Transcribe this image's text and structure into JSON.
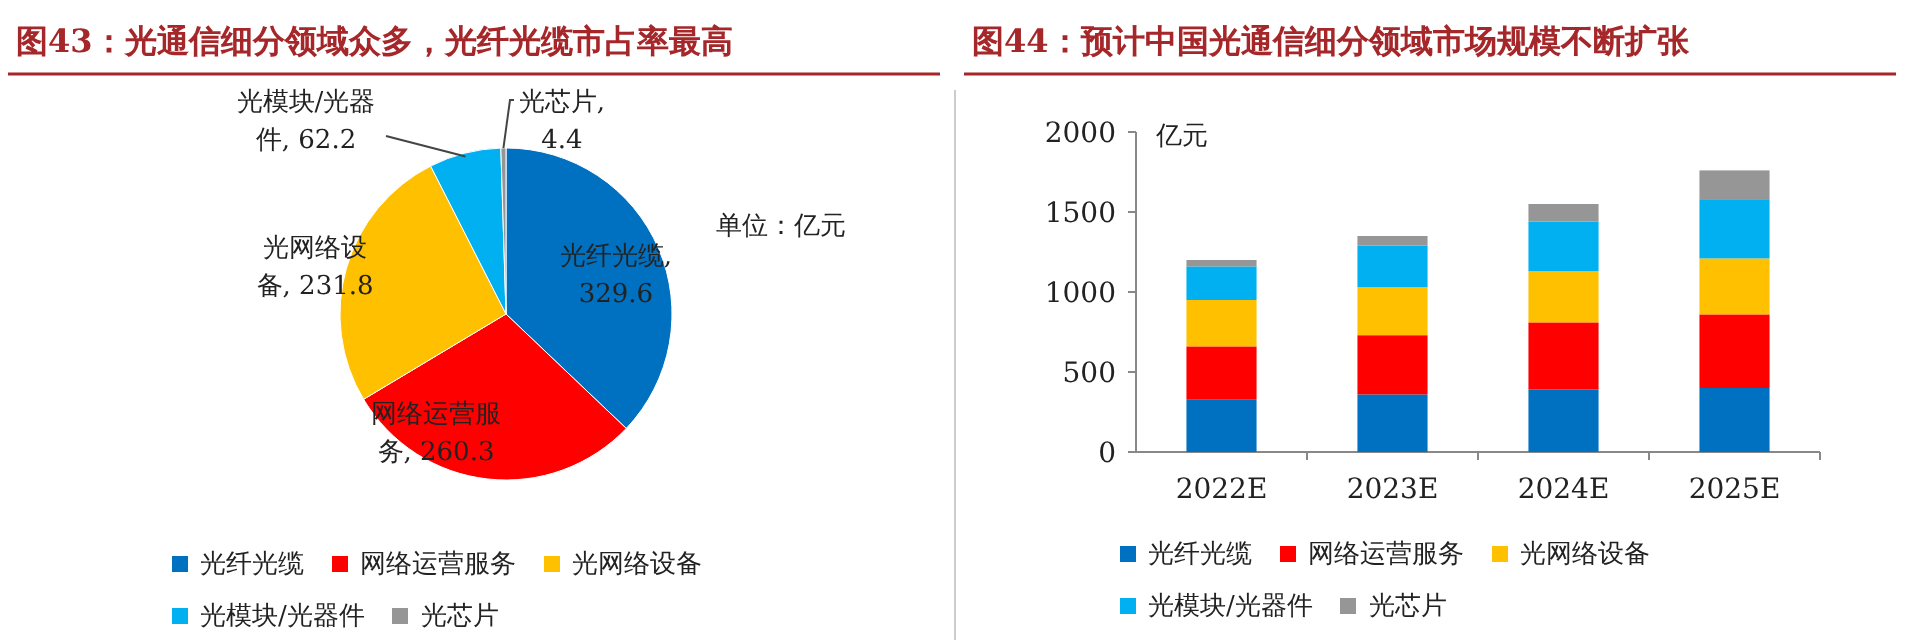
{
  "chart_data": [
    {
      "type": "pie",
      "title": "图43：光通信细分领域众多，光纤光缆市占率最高",
      "categories": [
        "光纤光缆",
        "网络运营服务",
        "光网络设备",
        "光模块/光器件",
        "光芯片"
      ],
      "values": [
        329.6,
        260.3,
        231.8,
        62.2,
        4.4
      ],
      "colors": [
        "#0070c0",
        "#ff0000",
        "#ffc000",
        "#00b0f0",
        "#969696"
      ],
      "value_labels": [
        "光纤光缆, 329.6",
        "网络运营服务, 260.3",
        "光网络设备, 231.8",
        "光模块/光器件, 62.2",
        "光芯片, 4.4"
      ],
      "legend": "bottom",
      "annotations": [
        "单位：亿元"
      ]
    },
    {
      "type": "bar",
      "title": "图44：预计中国光通信细分领域市场规模不断扩张",
      "ylabel": "亿元",
      "categories": [
        "2022E",
        "2023E",
        "2024E",
        "2025E"
      ],
      "stacked": true,
      "series": [
        {
          "name": "光纤光缆",
          "color": "#0070c0",
          "values": [
            330,
            360,
            390,
            400
          ]
        },
        {
          "name": "网络运营服务",
          "color": "#ff0000",
          "values": [
            330,
            370,
            420,
            460
          ]
        },
        {
          "name": "光网络设备",
          "color": "#ffc000",
          "values": [
            290,
            300,
            320,
            350
          ]
        },
        {
          "name": "光模块/光器件",
          "color": "#00b0f0",
          "values": [
            210,
            260,
            310,
            370
          ]
        },
        {
          "name": "光芯片",
          "color": "#969696",
          "values": [
            40,
            60,
            110,
            180
          ]
        }
      ],
      "ylim": [
        0,
        2000
      ],
      "yticks": [
        0,
        500,
        1000,
        1500,
        2000
      ],
      "grid": false,
      "legend": "bottom"
    }
  ]
}
